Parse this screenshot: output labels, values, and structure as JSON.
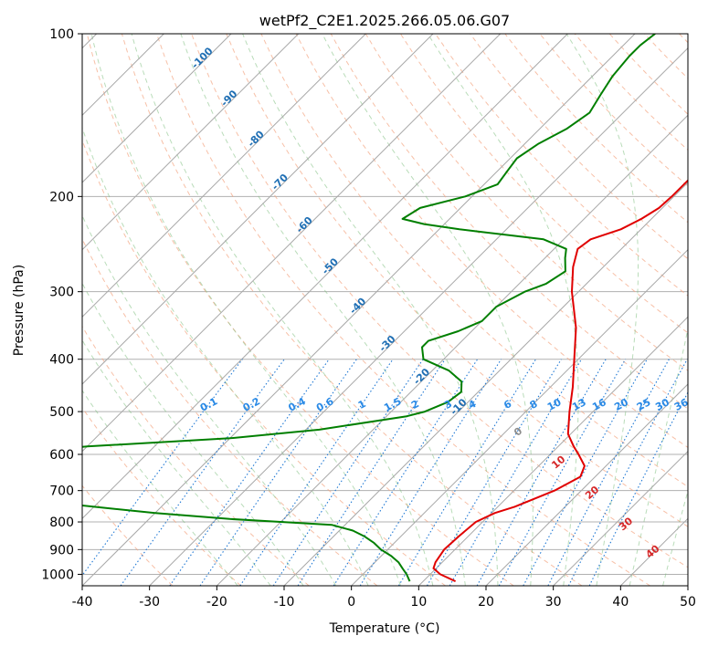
{
  "chart_data": {
    "type": "line",
    "title": "wetPf2_C2E1.2025.266.05.06.G07",
    "xlabel": "Temperature (°C)",
    "ylabel": "Pressure (hPa)",
    "xlim": [
      -40,
      50
    ],
    "ylim": [
      1050,
      100
    ],
    "y_scale": "log",
    "grid": true,
    "x_ticks": [
      -40,
      -30,
      -20,
      -10,
      0,
      10,
      20,
      30,
      40,
      50
    ],
    "y_ticks": [
      100,
      200,
      300,
      400,
      500,
      600,
      700,
      800,
      900,
      1000
    ],
    "skew_isotherm_labels": [
      -100,
      -90,
      -80,
      -70,
      -60,
      -50,
      -40,
      -30,
      -20,
      -10
    ],
    "mixing_ratio_labels": [
      "0.1",
      "0.2",
      "0.4",
      "0.6",
      "1",
      "1.5",
      "2",
      "3",
      "4",
      "6",
      "8",
      "10",
      "13",
      "16",
      "20",
      "25",
      "30",
      "36"
    ],
    "moist_adiabat_labels": [
      "0",
      "10",
      "20",
      "30",
      "40"
    ],
    "series": [
      {
        "color": "#e00000",
        "points": [
          [
            1030,
            14.8
          ],
          [
            1000,
            11.5
          ],
          [
            975,
            9.6
          ],
          [
            950,
            9.0
          ],
          [
            900,
            8.4
          ],
          [
            850,
            8.6
          ],
          [
            800,
            9.0
          ],
          [
            770,
            10.5
          ],
          [
            750,
            12.5
          ],
          [
            700,
            16.0
          ],
          [
            660,
            17.8
          ],
          [
            630,
            16.8
          ],
          [
            600,
            14.2
          ],
          [
            580,
            12.3
          ],
          [
            550,
            9.6
          ],
          [
            500,
            6.5
          ],
          [
            450,
            3.3
          ],
          [
            400,
            -0.6
          ],
          [
            350,
            -5.0
          ],
          [
            300,
            -11.0
          ],
          [
            270,
            -14.5
          ],
          [
            250,
            -16.5
          ],
          [
            240,
            -16.0
          ],
          [
            230,
            -13.0
          ],
          [
            220,
            -11.5
          ],
          [
            210,
            -10.5
          ],
          [
            200,
            -10.3
          ],
          [
            180,
            -10.3
          ],
          [
            160,
            -11.5
          ],
          [
            150,
            -12.8
          ],
          [
            140,
            -14.0
          ],
          [
            130,
            -14.7
          ],
          [
            120,
            -14.9
          ],
          [
            115,
            -14.4
          ],
          [
            110,
            -13.0
          ],
          [
            105,
            -12.5
          ],
          [
            100,
            -11.6
          ]
        ]
      },
      {
        "color": "#007f00",
        "points": [
          [
            1030,
            8.0
          ],
          [
            1000,
            6.5
          ],
          [
            975,
            5.0
          ],
          [
            950,
            3.5
          ],
          [
            925,
            1.5
          ],
          [
            900,
            -1.0
          ],
          [
            875,
            -3.0
          ],
          [
            850,
            -5.5
          ],
          [
            830,
            -8.0
          ],
          [
            810,
            -12.0
          ],
          [
            800,
            -20.0
          ],
          [
            790,
            -28.0
          ],
          [
            770,
            -40.0
          ],
          [
            750,
            -50.0
          ],
          [
            720,
            -65.0
          ],
          [
            700,
            -77.0
          ],
          [
            690,
            -80.0
          ],
          [
            680,
            -82.0
          ],
          [
            670,
            -83.0
          ],
          [
            660,
            -82.0
          ],
          [
            650,
            -82.0
          ],
          [
            600,
            -75.0
          ],
          [
            580,
            -60.0
          ],
          [
            560,
            -40.0
          ],
          [
            540,
            -28.0
          ],
          [
            510,
            -17.0
          ],
          [
            500,
            -15.0
          ],
          [
            480,
            -13.0
          ],
          [
            460,
            -12.5
          ],
          [
            440,
            -14.0
          ],
          [
            420,
            -17.5
          ],
          [
            400,
            -23.0
          ],
          [
            380,
            -25.0
          ],
          [
            370,
            -25.0
          ],
          [
            355,
            -22.0
          ],
          [
            340,
            -20.0
          ],
          [
            320,
            -20.0
          ],
          [
            300,
            -18.0
          ],
          [
            290,
            -16.0
          ],
          [
            275,
            -15.0
          ],
          [
            260,
            -17.0
          ],
          [
            250,
            -18.2
          ],
          [
            240,
            -23.0
          ],
          [
            235,
            -30.0
          ],
          [
            230,
            -37.0
          ],
          [
            225,
            -43.0
          ],
          [
            220,
            -47.0
          ],
          [
            210,
            -46.0
          ],
          [
            200,
            -41.0
          ],
          [
            190,
            -38.0
          ],
          [
            180,
            -38.5
          ],
          [
            170,
            -39.0
          ],
          [
            160,
            -38.0
          ],
          [
            150,
            -36.0
          ],
          [
            140,
            -35.0
          ],
          [
            130,
            -36.0
          ],
          [
            120,
            -37.0
          ],
          [
            110,
            -37.5
          ],
          [
            105,
            -37.5
          ],
          [
            100,
            -37.0
          ]
        ]
      }
    ]
  }
}
